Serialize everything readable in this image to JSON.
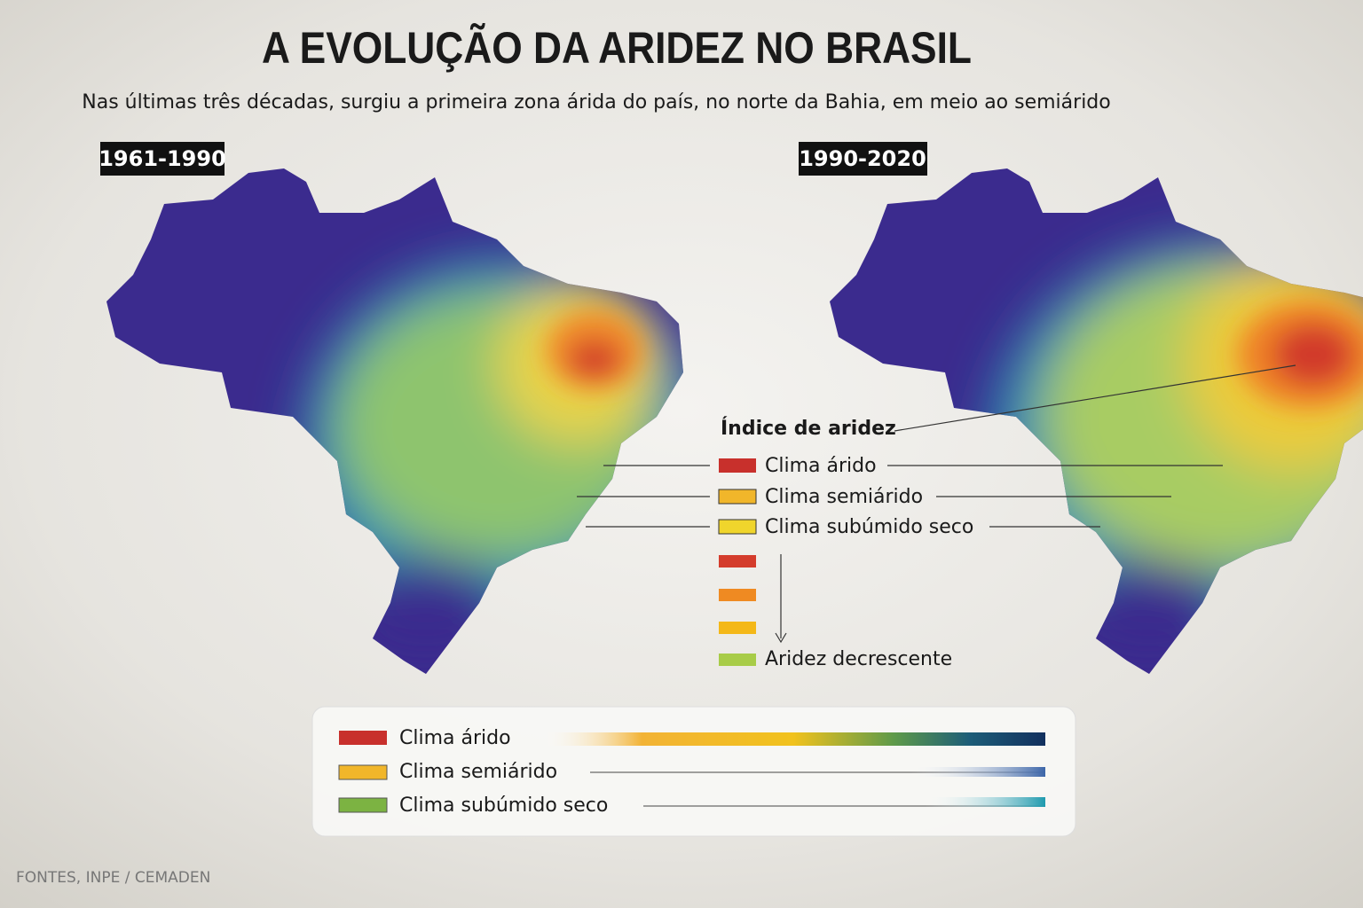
{
  "header": {
    "title": "A EVOLUÇÃO DA ARIDEZ NO BRASIL",
    "subtitle": "Nas últimas três décadas, surgiu a primeira zona árida do país, no norte da Bahia, em meio ao semiárido"
  },
  "maps": [
    {
      "label": "1961-1990"
    },
    {
      "label": "1990-2020"
    }
  ],
  "legend": {
    "title": "Índice de aridez",
    "items": [
      "Clima árido",
      "Clima semiárido",
      "Clima subúmido seco"
    ],
    "scale_end": "Aridez decrescente"
  },
  "bottom_legend": {
    "items": [
      "Clima árido",
      "Clima semiárido",
      "Clima subúmido seco"
    ]
  },
  "source": "FONTES, INPE / CEMADEN"
}
